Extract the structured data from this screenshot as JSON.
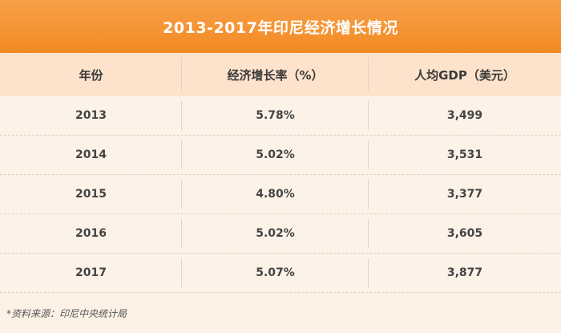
{
  "title": "2013-2017年印尼经济增长情况",
  "columns": [
    "年份",
    "经济增长率（%）",
    "人均GDP（美元）"
  ],
  "rows": [
    [
      "2013",
      "5.78%",
      "3,499"
    ],
    [
      "2014",
      "5.02%",
      "3,531"
    ],
    [
      "2015",
      "4.80%",
      "3,377"
    ],
    [
      "2016",
      "5.02%",
      "3,605"
    ],
    [
      "2017",
      "5.07%",
      "3,877"
    ]
  ],
  "footer": "*资料来源：印尼中央统计局",
  "colors": {
    "title_bar": "#f38a22",
    "header_bg": "#fde3cb",
    "body_bg": "#fdf1e6"
  }
}
